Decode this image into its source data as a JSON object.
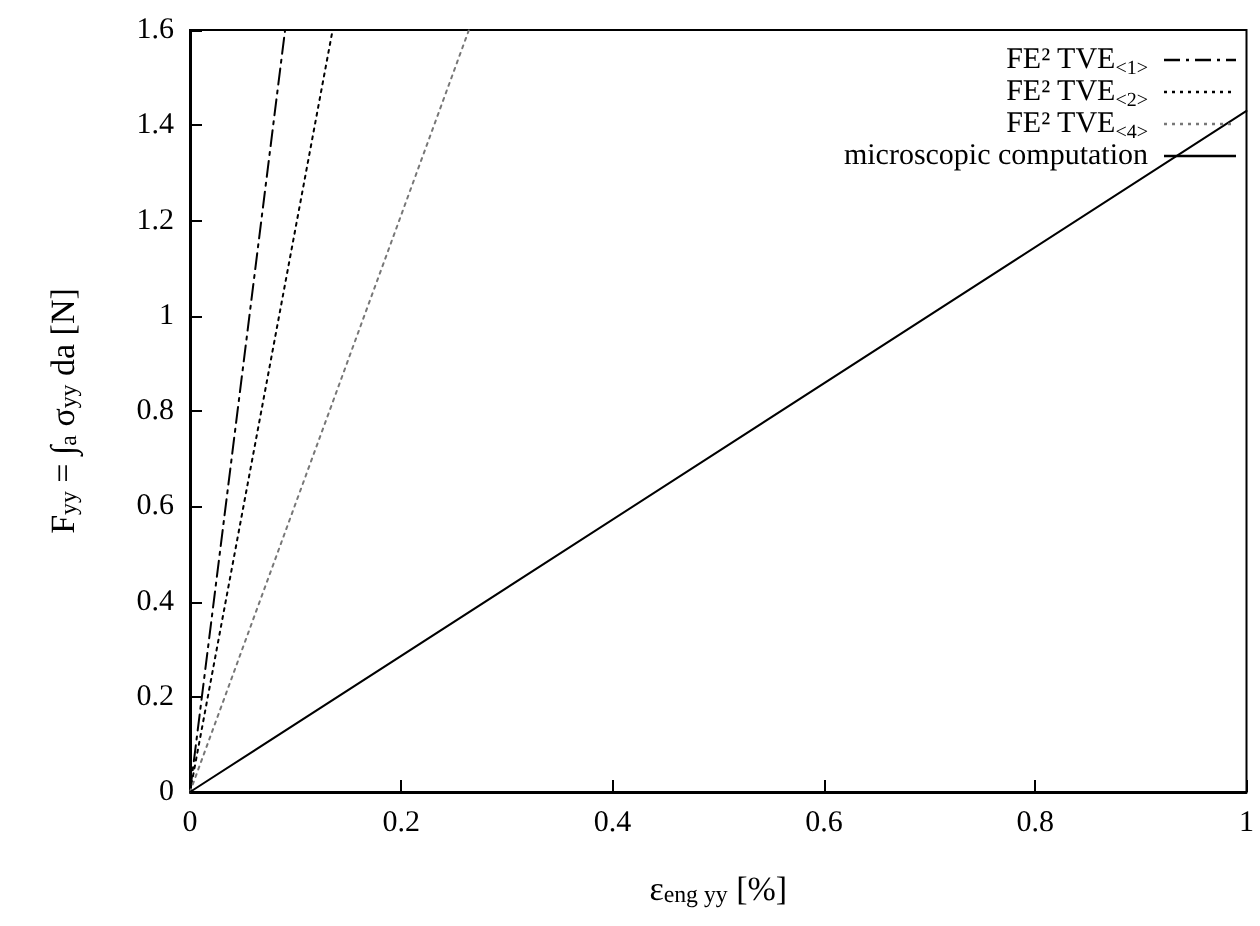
{
  "chart_data": {
    "type": "line",
    "xlabel": "ε$_{eng yy}$ [%]",
    "ylabel": "F$_{yy}$ = ∫$_{a}$ σ$_{yy}$ da [N]",
    "xlim": [
      0,
      1
    ],
    "xticks": [
      0,
      0.2,
      0.4,
      0.6,
      0.8,
      1
    ],
    "ylim": [
      0,
      1.6
    ],
    "yticks": [
      0,
      0.2,
      0.4,
      0.6,
      0.8,
      1,
      1.2,
      1.4,
      1.6
    ],
    "legend": "top right",
    "series": [
      {
        "name": "FE² TVE$_{<1>}$",
        "color": "#000000",
        "line_style": "dashdot",
        "x": [
          0,
          0.09
        ],
        "values": [
          0,
          1.6
        ]
      },
      {
        "name": "FE² TVE$_{<2>}$",
        "color": "#000000",
        "line_style": "dotted",
        "x": [
          0,
          0.135
        ],
        "values": [
          0,
          1.6
        ]
      },
      {
        "name": "FE² TVE$_{<4>}$",
        "color": "#777777",
        "line_style": "dotted",
        "x": [
          0,
          0.264
        ],
        "values": [
          0,
          1.6
        ]
      },
      {
        "name": "microscopic computation",
        "color": "#000000",
        "line_style": "solid",
        "x": [
          0,
          1
        ],
        "values": [
          0,
          1.43
        ]
      }
    ]
  }
}
